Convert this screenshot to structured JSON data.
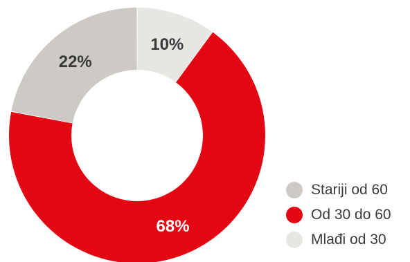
{
  "chart_data": {
    "type": "pie",
    "donut": true,
    "title": "",
    "categories": [
      "Mlađi od 30",
      "Od 30 do 60",
      "Stariji od 60"
    ],
    "values": [
      10,
      68,
      22
    ],
    "labels": [
      "10%",
      "68%",
      "22%"
    ],
    "colors": [
      "#e8e6e3",
      "#e30613",
      "#cdc9c5"
    ],
    "label_colors": [
      "#3a3a3a",
      "#ffffff",
      "#3a3a3a"
    ],
    "legend_position": "bottom-right",
    "legend": [
      {
        "label": "Stariji od 60",
        "color": "#cdc9c5"
      },
      {
        "label": "Od 30 do 60",
        "color": "#e30613"
      },
      {
        "label": "Mlađi od 30",
        "color": "#e8e6e3"
      }
    ]
  }
}
